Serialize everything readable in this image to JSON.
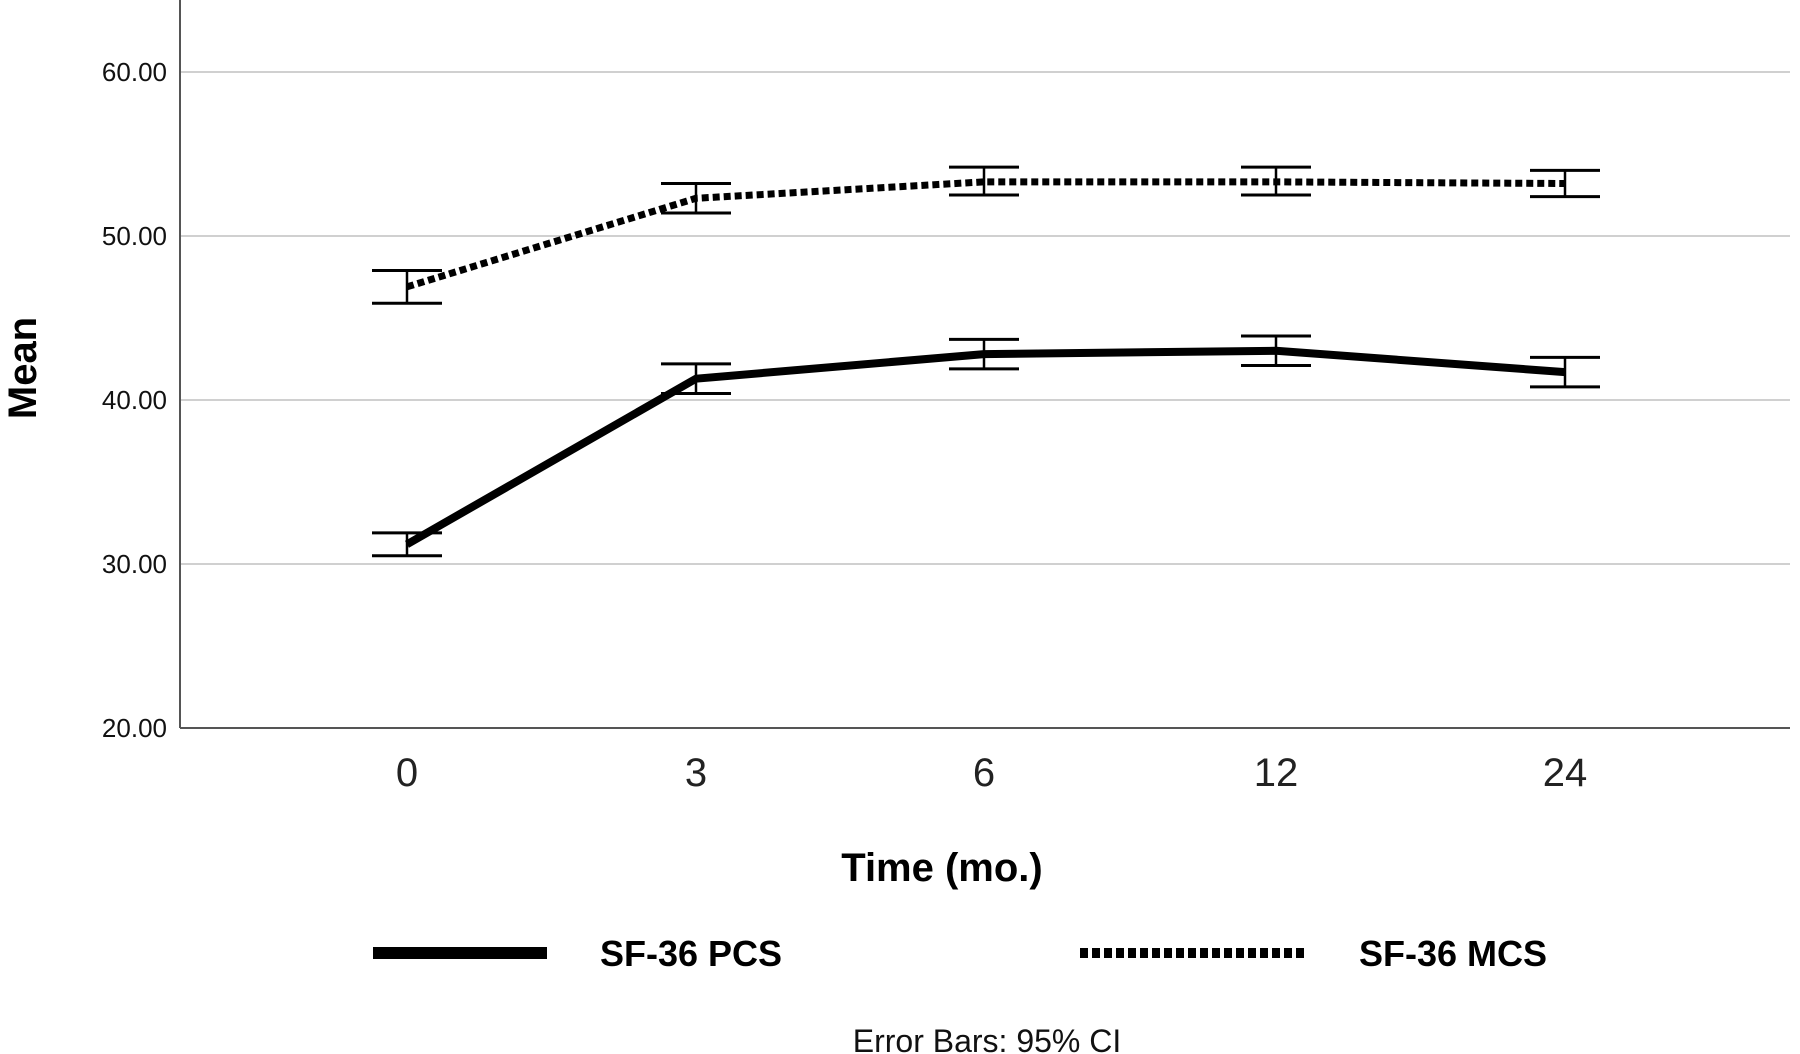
{
  "chart_data": {
    "type": "line",
    "title": "",
    "xlabel": "Time (mo.)",
    "ylabel": "Mean",
    "categories": [
      "0",
      "3",
      "6",
      "12",
      "24"
    ],
    "ylim": [
      20,
      65
    ],
    "yticks": [
      "20.00",
      "30.00",
      "40.00",
      "50.00",
      "60.00"
    ],
    "grid": "horizontal",
    "legend_position": "bottom",
    "series": [
      {
        "name": "SF-36 PCS",
        "style": "solid",
        "values": [
          31.2,
          41.3,
          42.8,
          43.0,
          41.7
        ],
        "ci_lower": [
          30.5,
          40.4,
          41.9,
          42.1,
          40.8
        ],
        "ci_upper": [
          31.9,
          42.2,
          43.7,
          43.9,
          42.6
        ]
      },
      {
        "name": "SF-36 MCS",
        "style": "dotted",
        "values": [
          46.9,
          52.3,
          53.3,
          53.3,
          53.2
        ],
        "ci_lower": [
          45.9,
          51.4,
          52.5,
          52.5,
          52.4
        ],
        "ci_upper": [
          47.9,
          53.2,
          54.2,
          54.2,
          54.0
        ]
      }
    ],
    "footnote": "Error Bars: 95% CI",
    "colors": {
      "line": "#000000",
      "grid": "#d0d0d0",
      "axis": "#555555"
    }
  }
}
